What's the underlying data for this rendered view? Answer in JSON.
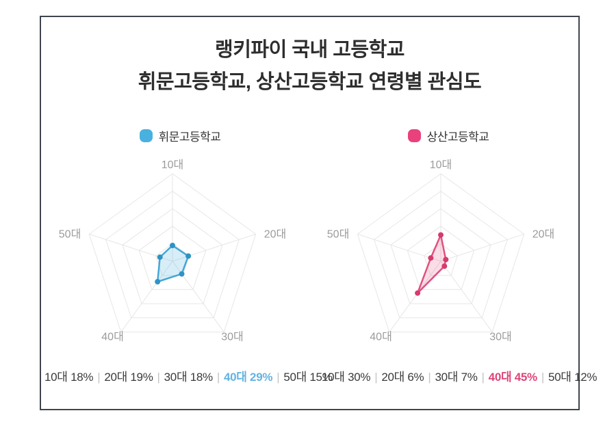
{
  "title": {
    "line1": "랭키파이 국내 고등학교",
    "line2": "휘문고등학교, 상산고등학교 연령별 관심도"
  },
  "chart_data": {
    "type": "radar",
    "categories": [
      "10대",
      "20대",
      "30대",
      "40대",
      "50대"
    ],
    "max": 100,
    "rings": 5,
    "grid_color": "#e6e6e6",
    "axis_label_color": "#9b9b9b",
    "stats_separator": "|",
    "series": [
      {
        "name": "휘문고등학교",
        "values": [
          18,
          19,
          18,
          29,
          15
        ],
        "unit": "%",
        "line_color": "#45a7d6",
        "point_color": "#2e93c6",
        "fill_color": "rgba(73, 177, 221, 0.22)",
        "legend_dot_color": "#49b1df",
        "highlight_index": 3,
        "highlight_color": "#63b3e2"
      },
      {
        "name": "상산고등학교",
        "values": [
          30,
          6,
          7,
          45,
          12
        ],
        "unit": "%",
        "line_color": "#e0517e",
        "point_color": "#d63b6d",
        "fill_color": "rgba(232, 65, 121, 0.18)",
        "legend_dot_color": "#e8417c",
        "highlight_index": 3,
        "highlight_color": "#dd4579"
      }
    ]
  }
}
